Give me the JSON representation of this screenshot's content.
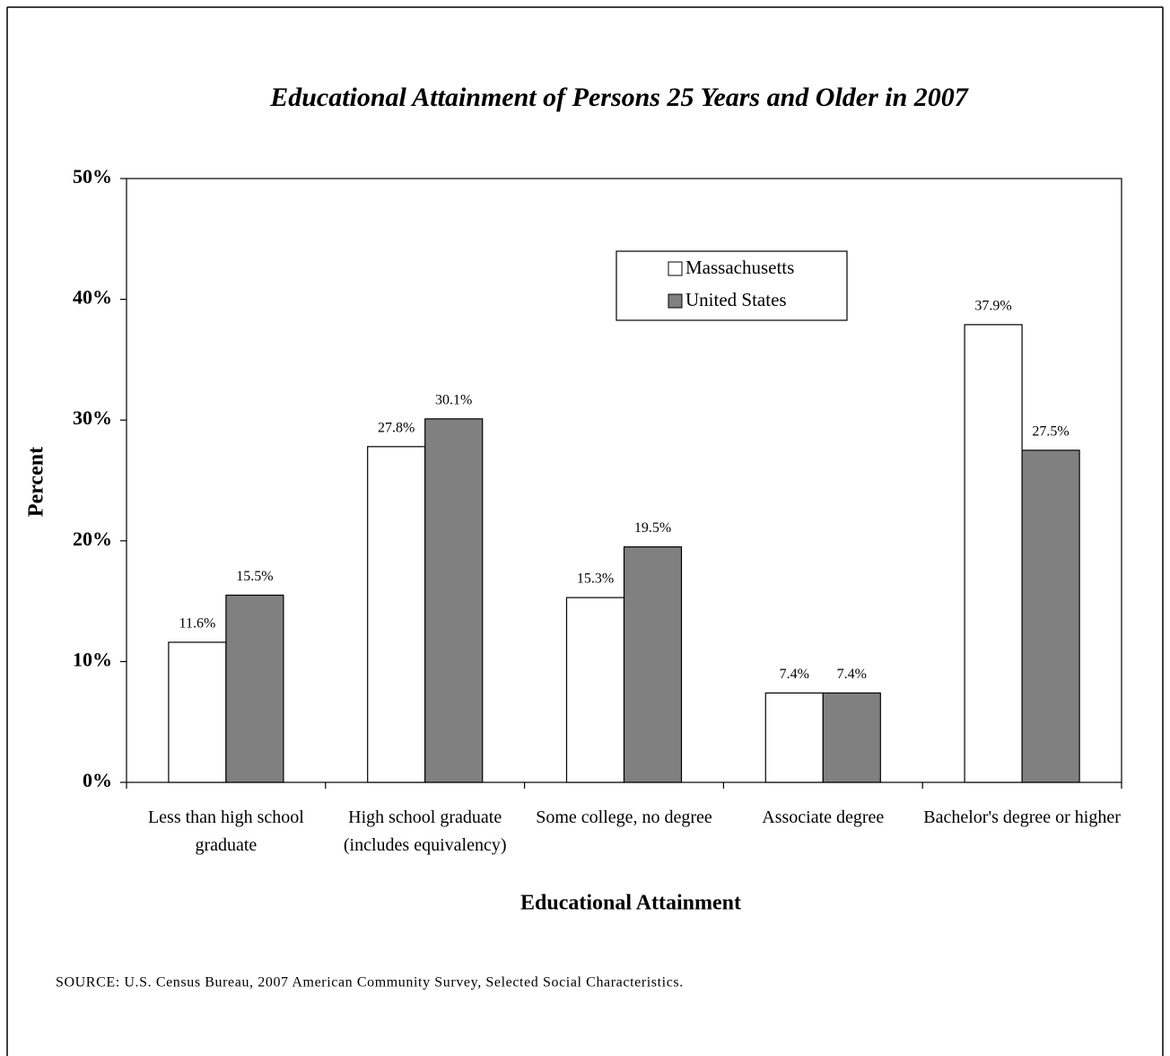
{
  "chart_data": {
    "type": "bar",
    "title": "Educational Attainment of Persons 25 Years and Older in 2007",
    "x_label": "Educational Attainment",
    "y_label": "Percent",
    "source": "SOURCE: U.S. Census Bureau, 2007 American Community Survey, Selected Social Characteristics.",
    "categories": [
      "Less than high school graduate",
      "High school graduate (includes equivalency)",
      "Some college, no degree",
      "Associate degree",
      "Bachelor's degree or higher"
    ],
    "series": [
      {
        "name": "Massachusetts",
        "color": "#ffffff",
        "values": [
          11.6,
          27.8,
          15.3,
          7.4,
          37.9
        ],
        "value_labels": [
          "11.6%",
          "27.8%",
          "15.3%",
          "7.4%",
          "37.9%"
        ]
      },
      {
        "name": "United States",
        "color": "#808080",
        "values": [
          15.5,
          30.1,
          19.5,
          7.4,
          27.5
        ],
        "value_labels": [
          "15.5%",
          "30.1%",
          "19.5%",
          "7.4%",
          "27.5%"
        ]
      }
    ],
    "ylim": [
      0,
      50
    ],
    "yticks": [
      {
        "value": 0,
        "label": "0%"
      },
      {
        "value": 10,
        "label": "10%"
      },
      {
        "value": 20,
        "label": "20%"
      },
      {
        "value": 30,
        "label": "30%"
      },
      {
        "value": 40,
        "label": "40%"
      },
      {
        "value": 50,
        "label": "50%"
      }
    ],
    "grid": false
  }
}
